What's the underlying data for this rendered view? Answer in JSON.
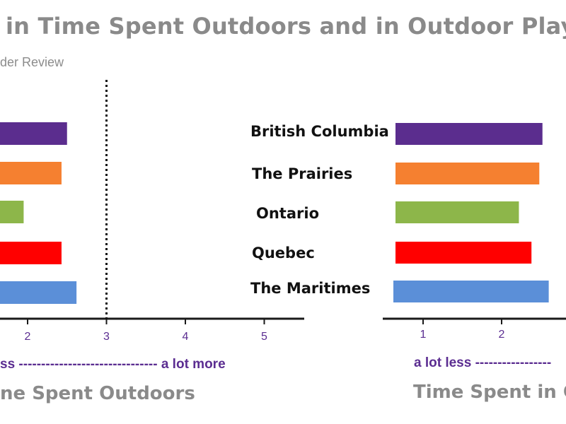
{
  "header": {
    "title": "in Time Spent Outdoors and in Outdoor Play",
    "subtitle": "der Review"
  },
  "chart_data": [
    {
      "type": "bar",
      "orientation": "horizontal",
      "xlabel": "ne Spent Outdoors",
      "range_text": "ss ------------------------------- a lot more",
      "categories": [
        "British Columbia",
        "The Prairies",
        "Ontario",
        "Quebec",
        "The Maritimes"
      ],
      "values": [
        2.5,
        2.43,
        1.95,
        2.43,
        2.62
      ],
      "ticks": [
        "2",
        "3",
        "4",
        "5"
      ],
      "reference_line": 3,
      "colors": [
        "#5b2d8e",
        "#f58030",
        "#8db64a",
        "#ff0000",
        "#5b8fd8"
      ]
    },
    {
      "type": "bar",
      "orientation": "horizontal",
      "xlabel": "Time Spent in Ou",
      "range_text": "a lot less -----------------",
      "categories": [
        "British Columbia",
        "The Prairies",
        "Ontario",
        "Quebec",
        "The Maritimes"
      ],
      "values": [
        2.52,
        2.48,
        2.22,
        2.38,
        2.6
      ],
      "ticks": [
        "1",
        "2"
      ],
      "colors": [
        "#5b2d8e",
        "#f58030",
        "#8db64a",
        "#ff0000",
        "#5b8fd8"
      ]
    }
  ]
}
